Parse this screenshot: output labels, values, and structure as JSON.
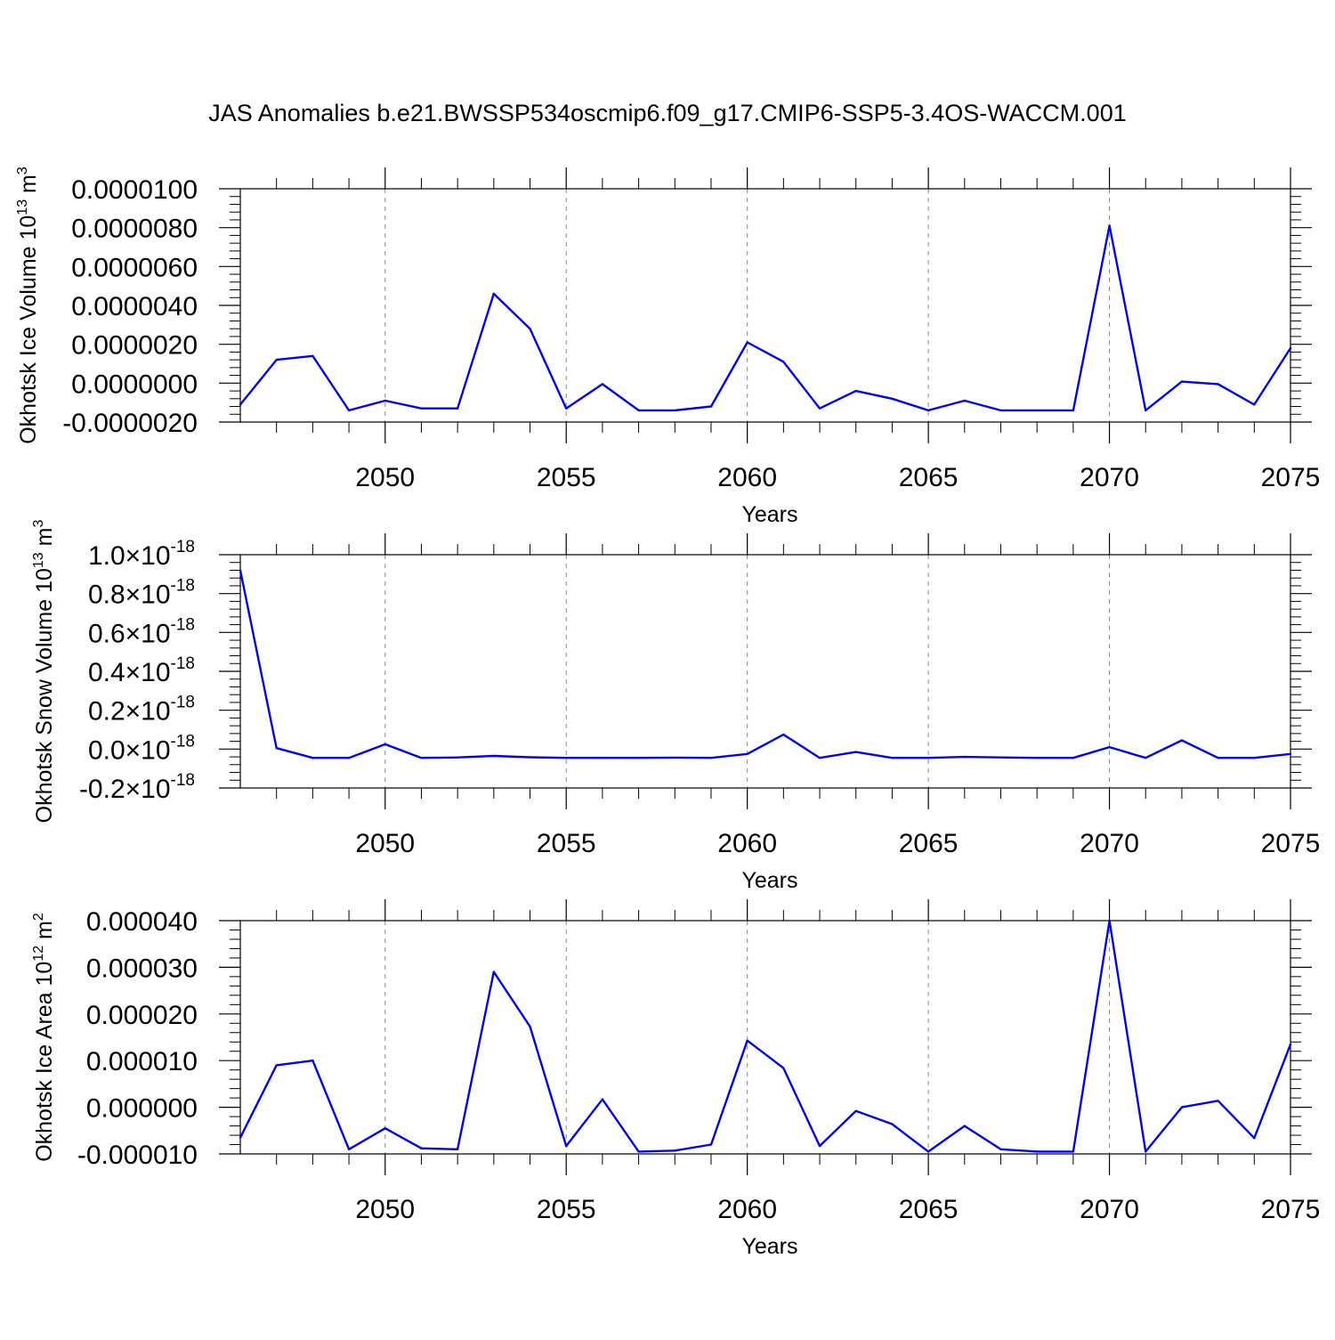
{
  "title": "JAS Anomalies b.e21.BWSSP534oscmip6.f09_g17.CMIP6-SSP5-3.4OS-WACCM.001",
  "colors": {
    "line": "#0000ff",
    "axis": "#000000",
    "grid": "#888888"
  },
  "chart_data": [
    {
      "type": "line",
      "ylabel": "Okhotsk Ice Volume 10",
      "ylabel_exp": "13",
      "ylabel_unit": " m",
      "ylabel_unit_exp": "3",
      "xlabel": "Years",
      "xlim": [
        2046,
        2075
      ],
      "ylim": [
        -2e-06,
        1e-05
      ],
      "yticks": [
        -2e-06,
        0.0,
        2e-06,
        4e-06,
        6e-06,
        8e-06,
        1e-05
      ],
      "ytick_labels": [
        "-0.0000020",
        "0.0000000",
        "0.0000020",
        "0.0000040",
        "0.0000060",
        "0.0000080",
        "0.0000100"
      ],
      "xticks": [
        2050,
        2055,
        2060,
        2065,
        2070,
        2075
      ],
      "xtick_labels": [
        "2050",
        "2055",
        "2060",
        "2065",
        "2070",
        "2075"
      ],
      "x": [
        2046,
        2047,
        2048,
        2049,
        2050,
        2051,
        2052,
        2053,
        2054,
        2055,
        2056,
        2057,
        2058,
        2059,
        2060,
        2061,
        2062,
        2063,
        2064,
        2065,
        2066,
        2067,
        2068,
        2069,
        2070,
        2071,
        2072,
        2073,
        2074,
        2075
      ],
      "values": [
        -1.1e-06,
        1.2e-06,
        1.4e-06,
        -1.4e-06,
        -9e-07,
        -1.3e-06,
        -1.3e-06,
        4.6e-06,
        2.8e-06,
        -1.3e-06,
        -5e-08,
        -1.4e-06,
        -1.4e-06,
        -1.2e-06,
        2.1e-06,
        1.1e-06,
        -1.3e-06,
        -4e-07,
        -8e-07,
        -1.4e-06,
        -9e-07,
        -1.4e-06,
        -1.4e-06,
        -1.4e-06,
        8.1e-06,
        -1.4e-06,
        8e-08,
        -5e-08,
        -1.1e-06,
        1.8e-06
      ]
    },
    {
      "type": "line",
      "ylabel": "Okhotsk Snow Volume 10",
      "ylabel_exp": "13",
      "ylabel_unit": " m",
      "ylabel_unit_exp": "3",
      "xlabel": "Years",
      "xlim": [
        2046,
        2075
      ],
      "ylim": [
        -2e-19,
        1e-18
      ],
      "yticks": [
        -2e-19,
        0.0,
        2e-19,
        4e-19,
        6e-19,
        8e-19,
        1e-18
      ],
      "ytick_labels": [
        "-0.2×10",
        "0.0×10",
        "0.2×10",
        "0.4×10",
        "0.6×10",
        "0.8×10",
        "1.0×10"
      ],
      "ytick_exp": "-18",
      "xticks": [
        2050,
        2055,
        2060,
        2065,
        2070,
        2075
      ],
      "xtick_labels": [
        "2050",
        "2055",
        "2060",
        "2065",
        "2070",
        "2075"
      ],
      "x": [
        2046,
        2047,
        2048,
        2049,
        2050,
        2051,
        2052,
        2053,
        2054,
        2055,
        2056,
        2057,
        2058,
        2059,
        2060,
        2061,
        2062,
        2063,
        2064,
        2065,
        2066,
        2067,
        2068,
        2069,
        2070,
        2071,
        2072,
        2073,
        2074,
        2075
      ],
      "values": [
        9.2e-19,
        5e-21,
        -4.5e-20,
        -4.5e-20,
        2.5e-20,
        -4.5e-20,
        -4.3e-20,
        -3.5e-20,
        -4.2e-20,
        -4.5e-20,
        -4.5e-20,
        -4.5e-20,
        -4.4e-20,
        -4.5e-20,
        -2.5e-20,
        7.5e-20,
        -4.5e-20,
        -1.5e-20,
        -4.5e-20,
        -4.5e-20,
        -4e-20,
        -4.3e-20,
        -4.5e-20,
        -4.5e-20,
        1e-20,
        -4.5e-20,
        4.5e-20,
        -4.5e-20,
        -4.5e-20,
        -2.5e-20
      ]
    },
    {
      "type": "line",
      "ylabel": "Okhotsk Ice Area 10",
      "ylabel_exp": "12",
      "ylabel_unit": " m",
      "ylabel_unit_exp": "2",
      "xlabel": "Years",
      "xlim": [
        2046,
        2075
      ],
      "ylim": [
        -1e-05,
        4e-05
      ],
      "yticks": [
        -1e-05,
        0.0,
        1e-05,
        2e-05,
        3e-05,
        4e-05
      ],
      "ytick_labels": [
        "-0.000010",
        "0.000000",
        "0.000010",
        "0.000020",
        "0.000030",
        "0.000040"
      ],
      "xticks": [
        2050,
        2055,
        2060,
        2065,
        2070,
        2075
      ],
      "xtick_labels": [
        "2050",
        "2055",
        "2060",
        "2065",
        "2070",
        "2075"
      ],
      "x": [
        2046,
        2047,
        2048,
        2049,
        2050,
        2051,
        2052,
        2053,
        2054,
        2055,
        2056,
        2057,
        2058,
        2059,
        2060,
        2061,
        2062,
        2063,
        2064,
        2065,
        2066,
        2067,
        2068,
        2069,
        2070,
        2071,
        2072,
        2073,
        2074,
        2075
      ],
      "values": [
        -6.5e-06,
        9e-06,
        1e-05,
        -9e-06,
        -4.5e-06,
        -8.8e-06,
        -9e-06,
        2.9e-05,
        1.73e-05,
        -8.3e-06,
        1.7e-06,
        -9.5e-06,
        -9.3e-06,
        -8e-06,
        1.43e-05,
        8.4e-06,
        -8.3e-06,
        -8e-07,
        -3.6e-06,
        -9.5e-06,
        -4e-06,
        -9e-06,
        -9.5e-06,
        -9.5e-06,
        4e-05,
        -9.5e-06,
        0.0,
        1.4e-06,
        -6.6e-06,
        1.35e-05
      ]
    }
  ]
}
